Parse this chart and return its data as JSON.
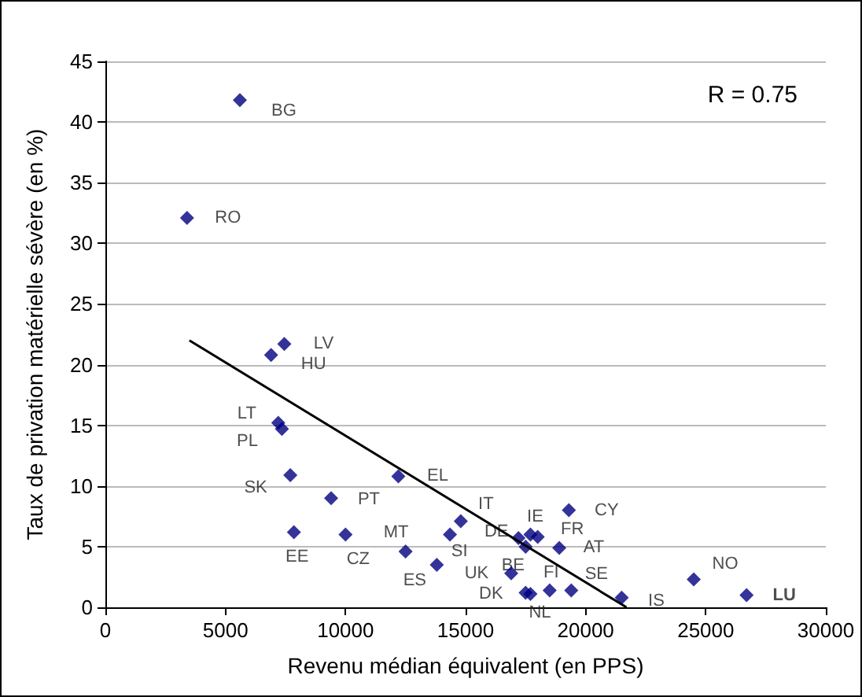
{
  "chart_data": {
    "type": "scatter",
    "xlabel": "Revenu médian équivalent (en PPS)",
    "ylabel": "Taux de privation matérielle sévère (en %)",
    "xlim": [
      0,
      30000
    ],
    "xticks": [
      0,
      5000,
      10000,
      15000,
      20000,
      25000,
      30000
    ],
    "ylim": [
      0,
      45
    ],
    "yticks": [
      0,
      5,
      10,
      15,
      20,
      25,
      30,
      35,
      40,
      45
    ],
    "grid": "y",
    "marker": "diamond",
    "series": [
      {
        "color": "#000080",
        "x": [
          5600,
          3400,
          7450,
          6900,
          7200,
          7350,
          7700,
          9400,
          12200,
          7850,
          10000,
          12500,
          13800,
          14350,
          14800,
          17700,
          17200,
          18000,
          17500,
          18900,
          19300,
          16900,
          17500,
          18500,
          19400,
          17700,
          21500,
          24500,
          26700
        ],
        "values": [
          41.8,
          32.1,
          21.7,
          20.8,
          15.2,
          14.7,
          10.9,
          9.0,
          10.8,
          6.2,
          6.0,
          4.6,
          3.5,
          6.0,
          7.1,
          6.0,
          5.7,
          5.8,
          5.0,
          4.9,
          8.0,
          2.8,
          1.2,
          1.4,
          1.4,
          1.1,
          0.8,
          2.3,
          1.0
        ]
      },
      {
        "type": "line",
        "color": "#000000",
        "marker": "none",
        "x": [
          3500,
          21700
        ],
        "values": [
          22,
          0
        ]
      }
    ],
    "annotations": [
      "R = 0.75",
      {
        "text": "BG",
        "x": 5600,
        "y": 41.8
      },
      {
        "text": "RO",
        "x": 3400,
        "y": 32.1
      },
      {
        "text": "LV",
        "x": 7450,
        "y": 21.7
      },
      {
        "text": "HU",
        "x": 6900,
        "y": 20.8
      },
      {
        "text": "LT",
        "x": 7200,
        "y": 15.2
      },
      {
        "text": "PL",
        "x": 7350,
        "y": 14.7
      },
      {
        "text": "SK",
        "x": 7700,
        "y": 10.9
      },
      {
        "text": "PT",
        "x": 9400,
        "y": 9.0
      },
      {
        "text": "EL",
        "x": 12200,
        "y": 10.8
      },
      {
        "text": "EE",
        "x": 7850,
        "y": 6.2
      },
      {
        "text": "CZ",
        "x": 10000,
        "y": 6.0
      },
      {
        "text": "MT",
        "x": 12500,
        "y": 4.6
      },
      {
        "text": "ES",
        "x": 13800,
        "y": 3.5
      },
      {
        "text": "SI",
        "x": 14350,
        "y": 6.0
      },
      {
        "text": "IT",
        "x": 14800,
        "y": 7.1
      },
      {
        "text": "IE",
        "x": 17700,
        "y": 6.0
      },
      {
        "text": "DE",
        "x": 17200,
        "y": 5.7
      },
      {
        "text": "FR",
        "x": 18000,
        "y": 5.8
      },
      {
        "text": "BE",
        "x": 17500,
        "y": 5.0
      },
      {
        "text": "AT",
        "x": 18900,
        "y": 4.9
      },
      {
        "text": "CY",
        "x": 19300,
        "y": 8.0
      },
      {
        "text": "UK",
        "x": 16900,
        "y": 2.8
      },
      {
        "text": "DK",
        "x": 17500,
        "y": 1.2
      },
      {
        "text": "FI",
        "x": 18500,
        "y": 1.4
      },
      {
        "text": "SE",
        "x": 19400,
        "y": 1.4
      },
      {
        "text": "NL",
        "x": 17700,
        "y": 1.1
      },
      {
        "text": "IS",
        "x": 21500,
        "y": 0.8
      },
      {
        "text": "NO",
        "x": 24500,
        "y": 2.3
      },
      {
        "text": "LU",
        "x": 26700,
        "y": 1.0
      }
    ]
  }
}
